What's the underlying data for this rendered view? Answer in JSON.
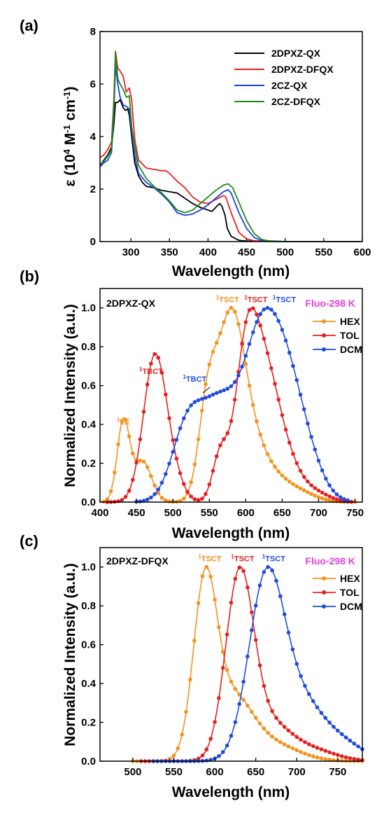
{
  "chart_data": [
    {
      "panel": "(a)",
      "type": "line",
      "xlabel": "Wavelength (nm)",
      "ylabel_parts": [
        "ε (10",
        "4",
        " M",
        "-1",
        " cm",
        "-1",
        ")"
      ],
      "xlim": [
        260,
        600
      ],
      "ylim": [
        0,
        8
      ],
      "xticks": [
        300,
        350,
        400,
        450,
        500,
        550,
        600
      ],
      "yticks": [
        0,
        2,
        4,
        6,
        8
      ],
      "legend_position": "top-right",
      "series": [
        {
          "name": "2DPXZ-QX",
          "color": "#000000",
          "points": [
            [
              260,
              2.9
            ],
            [
              265,
              3.1
            ],
            [
              270,
              3.3
            ],
            [
              275,
              3.6
            ],
            [
              278,
              4.5
            ],
            [
              280,
              5.3
            ],
            [
              283,
              5.3
            ],
            [
              286,
              5.4
            ],
            [
              290,
              5.1
            ],
            [
              293,
              5.0
            ],
            [
              296,
              5.05
            ],
            [
              298,
              4.8
            ],
            [
              301,
              4.0
            ],
            [
              305,
              3.0
            ],
            [
              310,
              2.5
            ],
            [
              315,
              2.25
            ],
            [
              320,
              2.1
            ],
            [
              330,
              2.05
            ],
            [
              340,
              1.95
            ],
            [
              350,
              1.9
            ],
            [
              360,
              1.85
            ],
            [
              370,
              1.65
            ],
            [
              380,
              1.45
            ],
            [
              390,
              1.3
            ],
            [
              400,
              1.2
            ],
            [
              405,
              1.15
            ],
            [
              410,
              1.3
            ],
            [
              415,
              1.45
            ],
            [
              418,
              1.35
            ],
            [
              422,
              1.0
            ],
            [
              425,
              0.5
            ],
            [
              430,
              0.2
            ],
            [
              440,
              0.05
            ],
            [
              450,
              0.02
            ],
            [
              500,
              0
            ],
            [
              600,
              0
            ]
          ]
        },
        {
          "name": "2DPXZ-DFQX",
          "color": "#ee1f1f",
          "points": [
            [
              260,
              3.2
            ],
            [
              265,
              3.3
            ],
            [
              270,
              3.5
            ],
            [
              275,
              3.8
            ],
            [
              278,
              5.5
            ],
            [
              280,
              7.25
            ],
            [
              283,
              6.6
            ],
            [
              286,
              6.5
            ],
            [
              290,
              6.3
            ],
            [
              294,
              5.7
            ],
            [
              298,
              5.85
            ],
            [
              301,
              5.4
            ],
            [
              305,
              3.9
            ],
            [
              310,
              3.1
            ],
            [
              320,
              2.8
            ],
            [
              330,
              2.75
            ],
            [
              340,
              2.7
            ],
            [
              345,
              2.7
            ],
            [
              350,
              2.6
            ],
            [
              360,
              2.3
            ],
            [
              370,
              2.05
            ],
            [
              380,
              1.7
            ],
            [
              390,
              1.5
            ],
            [
              400,
              1.45
            ],
            [
              410,
              1.6
            ],
            [
              420,
              1.75
            ],
            [
              423,
              1.7
            ],
            [
              430,
              1.1
            ],
            [
              440,
              0.35
            ],
            [
              450,
              0.1
            ],
            [
              460,
              0.03
            ],
            [
              500,
              0
            ],
            [
              600,
              0
            ]
          ]
        },
        {
          "name": "2CZ-QX",
          "color": "#1f3fd8",
          "points": [
            [
              260,
              2.85
            ],
            [
              265,
              3.0
            ],
            [
              270,
              3.1
            ],
            [
              275,
              3.4
            ],
            [
              278,
              5.0
            ],
            [
              280,
              6.7
            ],
            [
              283,
              6.0
            ],
            [
              286,
              5.5
            ],
            [
              290,
              5.2
            ],
            [
              294,
              5.15
            ],
            [
              298,
              5.05
            ],
            [
              301,
              4.2
            ],
            [
              305,
              3.3
            ],
            [
              310,
              2.6
            ],
            [
              320,
              2.25
            ],
            [
              330,
              2.05
            ],
            [
              340,
              1.8
            ],
            [
              350,
              1.5
            ],
            [
              360,
              1.1
            ],
            [
              370,
              1.0
            ],
            [
              380,
              1.05
            ],
            [
              390,
              1.2
            ],
            [
              400,
              1.4
            ],
            [
              410,
              1.65
            ],
            [
              420,
              1.9
            ],
            [
              426,
              1.97
            ],
            [
              430,
              1.85
            ],
            [
              440,
              1.1
            ],
            [
              450,
              0.5
            ],
            [
              460,
              0.15
            ],
            [
              470,
              0.04
            ],
            [
              500,
              0
            ],
            [
              600,
              0
            ]
          ]
        },
        {
          "name": "2CZ-DFQX",
          "color": "#1a8c1a",
          "points": [
            [
              260,
              2.95
            ],
            [
              265,
              3.05
            ],
            [
              270,
              3.25
            ],
            [
              275,
              3.5
            ],
            [
              278,
              5.3
            ],
            [
              280,
              7.2
            ],
            [
              283,
              6.2
            ],
            [
              286,
              6.0
            ],
            [
              290,
              5.8
            ],
            [
              294,
              5.5
            ],
            [
              298,
              5.55
            ],
            [
              301,
              4.4
            ],
            [
              305,
              3.6
            ],
            [
              310,
              2.9
            ],
            [
              320,
              2.4
            ],
            [
              330,
              2.1
            ],
            [
              340,
              1.85
            ],
            [
              350,
              1.55
            ],
            [
              360,
              1.2
            ],
            [
              370,
              1.1
            ],
            [
              380,
              1.2
            ],
            [
              390,
              1.45
            ],
            [
              400,
              1.7
            ],
            [
              410,
              1.95
            ],
            [
              420,
              2.15
            ],
            [
              426,
              2.2
            ],
            [
              432,
              2.05
            ],
            [
              440,
              1.5
            ],
            [
              450,
              0.8
            ],
            [
              460,
              0.3
            ],
            [
              470,
              0.08
            ],
            [
              480,
              0.02
            ],
            [
              500,
              0
            ],
            [
              600,
              0
            ]
          ]
        }
      ]
    },
    {
      "panel": "(b)",
      "type": "line",
      "compound": "2DPXZ-QX",
      "condition": "Fluo-298 K",
      "xlabel": "Wavelength (nm)",
      "ylabel": "Normalized Intensity (a.u.)",
      "xlim": [
        400,
        760
      ],
      "ylim": [
        0,
        1.1
      ],
      "xticks": [
        400,
        450,
        500,
        550,
        600,
        650,
        700,
        750
      ],
      "yticks": [
        0.0,
        0.2,
        0.4,
        0.6,
        0.8,
        1.0
      ],
      "legend_position": "top-right",
      "series": [
        {
          "name": "HEX",
          "color": "#f5921e",
          "start": 405,
          "end": 750,
          "peaks": [
            [
              432,
              0.39,
              12
            ],
            [
              458,
              0.2,
              18
            ],
            [
              548,
              0.45,
              18
            ],
            [
              578,
              0.72,
              25
            ],
            [
              600,
              0.32,
              32
            ],
            [
              640,
              0.1,
              35
            ],
            [
              680,
              0.03,
              30
            ]
          ]
        },
        {
          "name": "TOL",
          "color": "#e81e1e",
          "start": 410,
          "end": 745,
          "peaks": [
            [
              475,
              0.635,
              22
            ],
            [
              500,
              0.1,
              20
            ],
            [
              565,
              0.2,
              15
            ],
            [
              600,
              0.52,
              22
            ],
            [
              625,
              0.55,
              30
            ],
            [
              660,
              0.12,
              30
            ],
            [
              700,
              0.03,
              25
            ]
          ]
        },
        {
          "name": "DCM",
          "color": "#1f4be0",
          "start": 450,
          "end": 740,
          "peaks": [
            [
              520,
              0.32,
              30
            ],
            [
              565,
              0.4,
              35
            ],
            [
              615,
              0.45,
              32
            ],
            [
              650,
              0.6,
              40
            ],
            [
              690,
              0.06,
              30
            ]
          ]
        }
      ],
      "annotations": [
        {
          "sup": "1",
          "text": "LE",
          "color": "#f5921e",
          "x": 432,
          "y": 0.4
        },
        {
          "sup": "1",
          "text": "TBCT",
          "color": "#e81e1e",
          "x": 470,
          "y": 0.66
        },
        {
          "sup": "1",
          "text": "TBCT",
          "color": "#1f4be0",
          "x": 530,
          "y": 0.62
        },
        {
          "sup": "1",
          "text": "TSCT",
          "color": "#f5921e",
          "x": 575,
          "y": 1.03
        },
        {
          "sup": "1",
          "text": "TSCT",
          "color": "#e81e1e",
          "x": 614,
          "y": 1.03
        },
        {
          "sup": "1",
          "text": "TSCT",
          "color": "#1f4be0",
          "x": 653,
          "y": 1.03
        }
      ]
    },
    {
      "panel": "(c)",
      "type": "line",
      "compound": "2DPXZ-DFQX",
      "condition": "Fluo-298 K",
      "xlabel": "Wavelength (nm)",
      "ylabel": "Normalized Intensity (a.u.)",
      "xlim": [
        460,
        780
      ],
      "ylim": [
        0,
        1.1
      ],
      "xticks": [
        500,
        550,
        600,
        650,
        700,
        750
      ],
      "yticks": [
        0.0,
        0.2,
        0.4,
        0.6,
        0.8,
        1.0
      ],
      "legend_position": "top-right",
      "series": [
        {
          "name": "HEX",
          "color": "#f5921e",
          "start": 500,
          "end": 780,
          "peaks": [
            [
              588,
              0.8,
              20
            ],
            [
              620,
              0.3,
              35
            ],
            [
              670,
              0.08,
              45
            ]
          ]
        },
        {
          "name": "TOL",
          "color": "#e81e1e",
          "start": 510,
          "end": 780,
          "peaks": [
            [
              630,
              0.85,
              24
            ],
            [
              665,
              0.18,
              38
            ],
            [
              720,
              0.05,
              40
            ]
          ]
        },
        {
          "name": "DCM",
          "color": "#1f4be0",
          "start": 525,
          "end": 780,
          "peaks": [
            [
              662,
              0.75,
              30
            ],
            [
              700,
              0.3,
              45
            ],
            [
              760,
              0.06,
              35
            ]
          ]
        }
      ],
      "annotations": [
        {
          "sup": "1",
          "text": "TSCT",
          "color": "#f5921e",
          "x": 594,
          "y": 1.03
        },
        {
          "sup": "1",
          "text": "TSCT",
          "color": "#e81e1e",
          "x": 634,
          "y": 1.03
        },
        {
          "sup": "1",
          "text": "TSCT",
          "color": "#1f4be0",
          "x": 672,
          "y": 1.03
        }
      ]
    }
  ]
}
